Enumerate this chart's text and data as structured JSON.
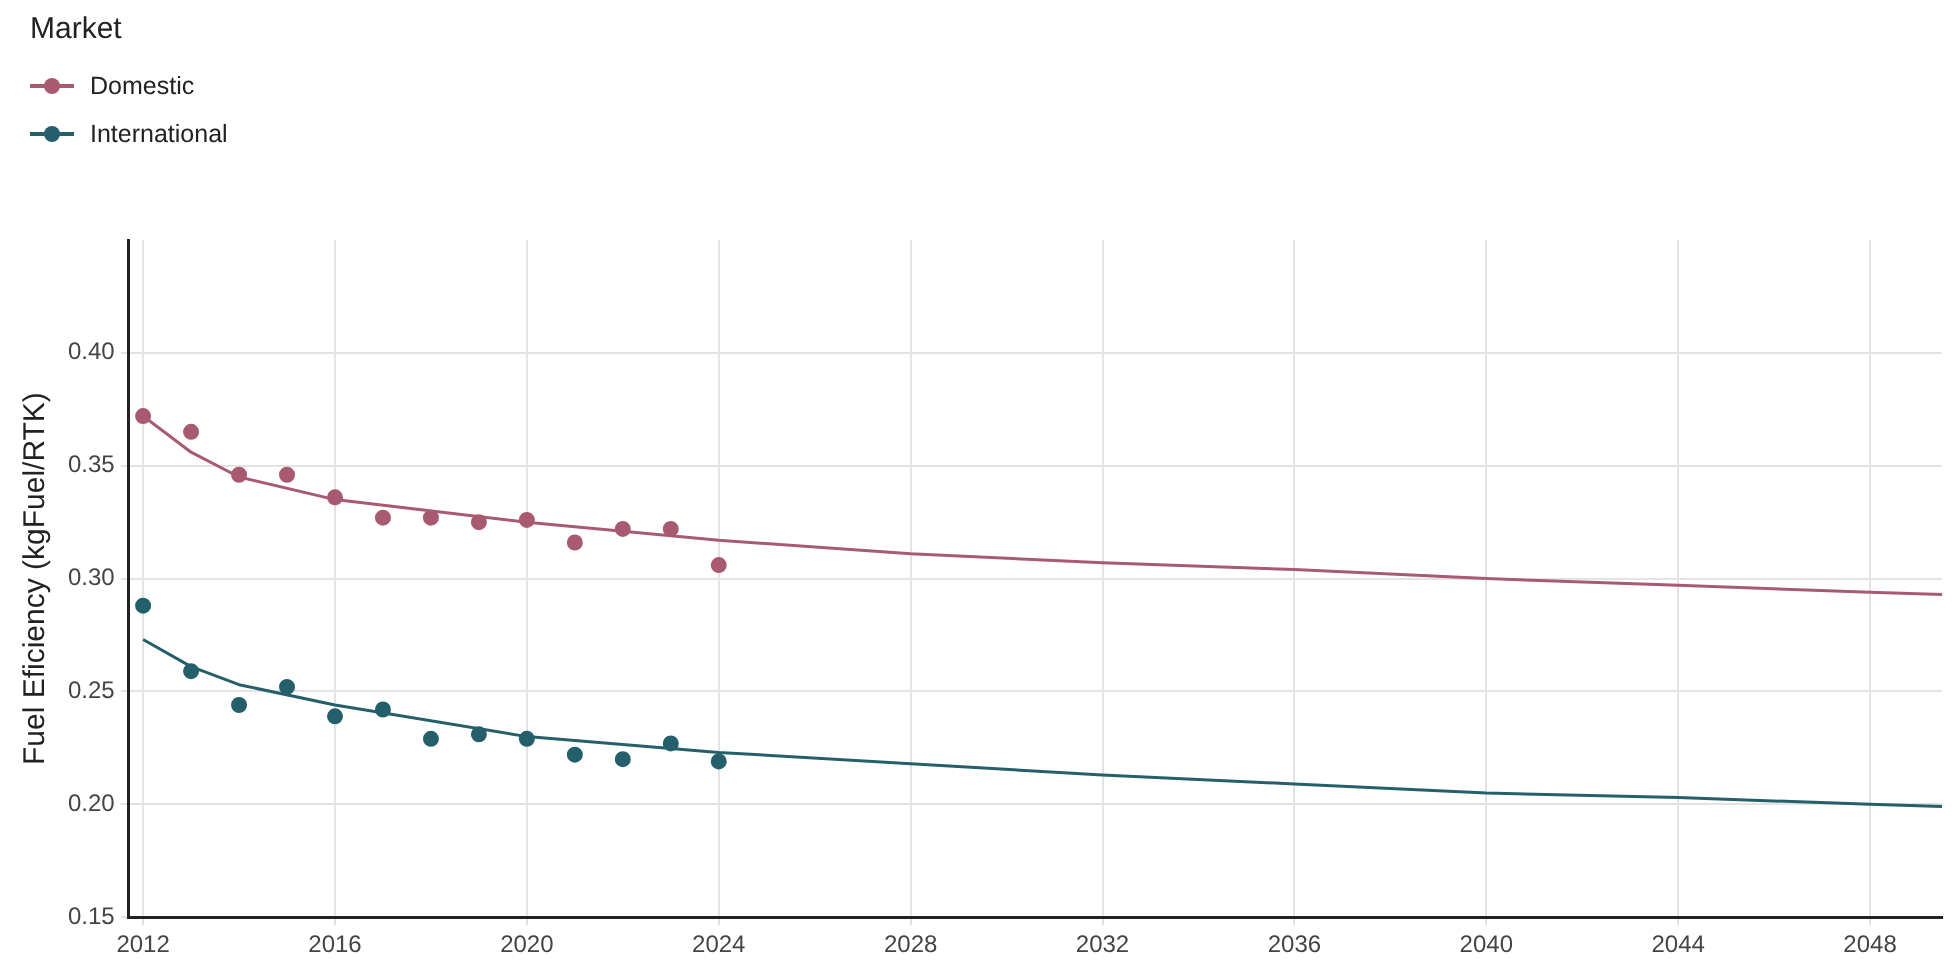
{
  "chart_data": {
    "type": "scatter",
    "ylabel": "Fuel Eficiency (kgFuel/RTK)",
    "legend_title": "Market",
    "legend": "top left",
    "xlim": [
      2011.7,
      2049.5
    ],
    "xticks": [
      2012,
      2016,
      2020,
      2024,
      2028,
      2032,
      2036,
      2040,
      2044,
      2048
    ],
    "ylim": [
      0.15,
      0.45
    ],
    "yticks": [
      {
        "value": 0.15,
        "label": "0.15"
      },
      {
        "value": 0.2,
        "label": "0.20"
      },
      {
        "value": 0.25,
        "label": "0.25"
      },
      {
        "value": 0.3,
        "label": "0.30"
      },
      {
        "value": 0.35,
        "label": "0.35"
      },
      {
        "value": 0.4,
        "label": "0.40"
      }
    ],
    "grid": true,
    "series": [
      {
        "name": "Domestic",
        "marker": "circle",
        "color": "#a85a70",
        "x": [
          2012,
          2013,
          2014,
          2015,
          2016,
          2017,
          2018,
          2019,
          2020,
          2021,
          2022,
          2023,
          2024
        ],
        "values": [
          0.372,
          0.365,
          0.346,
          0.346,
          0.336,
          0.327,
          0.327,
          0.325,
          0.326,
          0.316,
          0.322,
          0.322,
          0.306
        ]
      },
      {
        "name": "International",
        "marker": "circle",
        "color": "#245f6b",
        "x": [
          2012,
          2013,
          2014,
          2015,
          2016,
          2017,
          2018,
          2019,
          2020,
          2021,
          2022,
          2023,
          2024
        ],
        "values": [
          0.288,
          0.259,
          0.244,
          0.252,
          0.239,
          0.242,
          0.229,
          0.231,
          0.229,
          0.222,
          0.22,
          0.227,
          0.219
        ]
      },
      {
        "type": "line",
        "marker": "none",
        "color": "#a85a70",
        "x": [
          2012,
          2013,
          2014,
          2016,
          2020,
          2024,
          2028,
          2032,
          2036,
          2040,
          2044,
          2048,
          2049.5
        ],
        "values": [
          0.372,
          0.356,
          0.345,
          0.335,
          0.325,
          0.317,
          0.311,
          0.307,
          0.304,
          0.3,
          0.297,
          0.294,
          0.293
        ]
      },
      {
        "type": "line",
        "marker": "none",
        "color": "#245f6b",
        "x": [
          2012,
          2013,
          2014,
          2016,
          2020,
          2024,
          2028,
          2032,
          2036,
          2040,
          2044,
          2048,
          2049.5
        ],
        "values": [
          0.273,
          0.261,
          0.253,
          0.244,
          0.23,
          0.223,
          0.218,
          0.213,
          0.209,
          0.205,
          0.203,
          0.2,
          0.199
        ]
      }
    ]
  }
}
